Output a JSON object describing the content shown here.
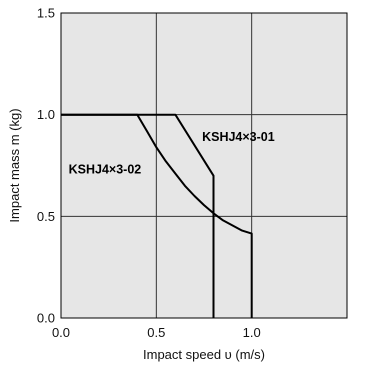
{
  "chart_data": {
    "type": "line",
    "xlabel": "Impact speed  υ (m/s)",
    "ylabel": "Impact mass  m (kg)",
    "xlim": [
      0,
      1.5
    ],
    "ylim": [
      0,
      1.5
    ],
    "x_ticks": [
      "0.0",
      "0.5",
      "1.0"
    ],
    "x_tick_values": [
      0,
      0.5,
      1.0
    ],
    "y_ticks": [
      "0.0",
      "0.5",
      "1.0",
      "1.5"
    ],
    "y_tick_values": [
      0,
      0.5,
      1.0,
      1.5
    ],
    "grid": true,
    "background": "#e6e6e6",
    "series": [
      {
        "name": "KSHJ4×3-01",
        "label_at": [
          0.74,
          0.87
        ],
        "x": [
          0,
          0.6,
          0.8,
          0.8
        ],
        "y": [
          1.0,
          1.0,
          0.7,
          0
        ]
      },
      {
        "name": "KSHJ4×3-02",
        "label_at": [
          0.04,
          0.71
        ],
        "x": [
          0,
          0.4,
          0.45,
          0.5,
          0.55,
          0.6,
          0.65,
          0.7,
          0.75,
          0.8,
          0.85,
          0.9,
          0.95,
          1.0,
          1.0
        ],
        "y": [
          1.0,
          1.0,
          0.92,
          0.84,
          0.77,
          0.71,
          0.65,
          0.6,
          0.555,
          0.515,
          0.48,
          0.455,
          0.43,
          0.415,
          0
        ]
      }
    ]
  }
}
